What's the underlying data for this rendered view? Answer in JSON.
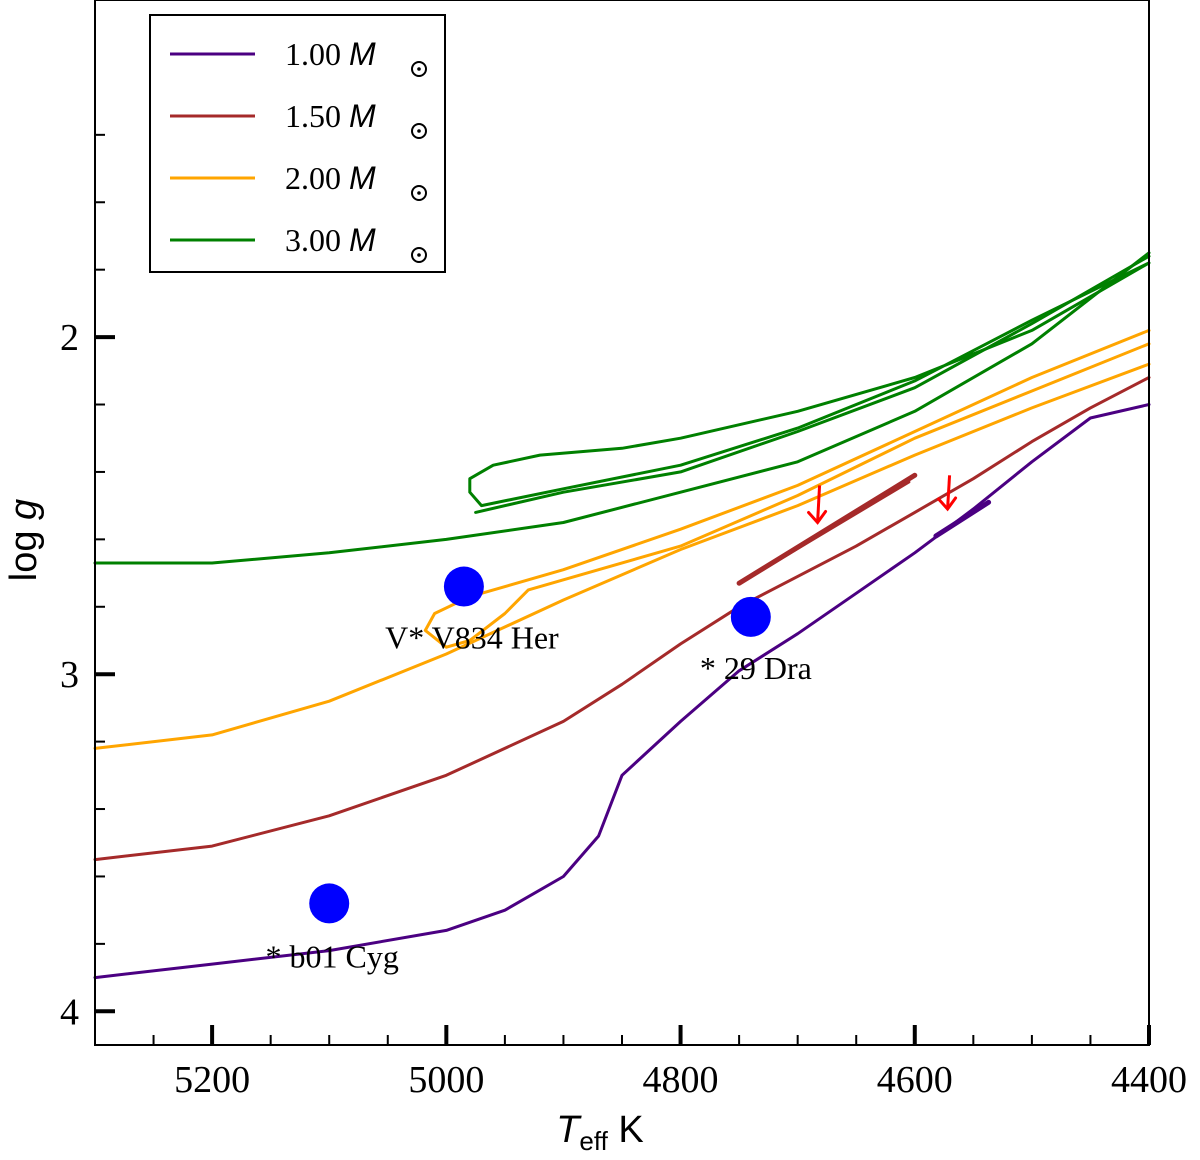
{
  "chart_data": {
    "type": "line",
    "xlabel": "T",
    "xlabel_sub": "eff",
    "xlabel_unit": "K",
    "ylabel": "log",
    "ylabel_var": "g",
    "xlim": [
      5300,
      4400
    ],
    "ylim": [
      1.0,
      4.1
    ],
    "x_ticks": [
      {
        "value": 5200,
        "label": "5200"
      },
      {
        "value": 5000,
        "label": "5000"
      },
      {
        "value": 4800,
        "label": "4800"
      },
      {
        "value": 4600,
        "label": "4600"
      },
      {
        "value": 4400,
        "label": "4400"
      }
    ],
    "x_minor_ticks": [
      5250,
      5150,
      5100,
      5050,
      4950,
      4900,
      4850,
      4750,
      4700,
      4650,
      4550,
      4500,
      4450
    ],
    "y_ticks": [
      {
        "value": 2,
        "label": "2"
      },
      {
        "value": 3,
        "label": "3"
      },
      {
        "value": 4,
        "label": "4"
      }
    ],
    "y_minor_ticks": [
      1.4,
      1.6,
      1.8,
      2.2,
      2.4,
      2.6,
      2.8,
      3.2,
      3.4,
      3.6,
      3.8
    ],
    "legend": {
      "position": "top-left",
      "entries": [
        {
          "label": "1.00",
          "unit": "M",
          "color": "#4b0082"
        },
        {
          "label": "1.50",
          "unit": "M",
          "color": "#a52a2a"
        },
        {
          "label": "2.00",
          "unit": "M",
          "color": "#ffa500"
        },
        {
          "label": "3.00",
          "unit": "M",
          "color": "#008000"
        }
      ]
    },
    "series": [
      {
        "name": "1.00 Msun",
        "color": "#4b0082",
        "points": [
          [
            5300,
            3.9
          ],
          [
            5200,
            3.86
          ],
          [
            5100,
            3.82
          ],
          [
            5000,
            3.76
          ],
          [
            4950,
            3.7
          ],
          [
            4900,
            3.6
          ],
          [
            4870,
            3.48
          ],
          [
            4850,
            3.3
          ],
          [
            4800,
            3.14
          ],
          [
            4750,
            2.99
          ],
          [
            4700,
            2.88
          ],
          [
            4650,
            2.76
          ],
          [
            4600,
            2.64
          ],
          [
            4550,
            2.51
          ],
          [
            4500,
            2.37
          ],
          [
            4450,
            2.24
          ],
          [
            4400,
            2.2
          ]
        ],
        "segments": [
          [
            [
              4582,
              2.59
            ],
            [
              4537,
              2.49
            ]
          ]
        ]
      },
      {
        "name": "1.50 Msun",
        "color": "#a52a2a",
        "points": [
          [
            5300,
            3.55
          ],
          [
            5200,
            3.51
          ],
          [
            5100,
            3.42
          ],
          [
            5000,
            3.3
          ],
          [
            4900,
            3.14
          ],
          [
            4850,
            3.03
          ],
          [
            4800,
            2.91
          ],
          [
            4750,
            2.8
          ],
          [
            4700,
            2.71
          ],
          [
            4650,
            2.62
          ],
          [
            4600,
            2.52
          ],
          [
            4550,
            2.42
          ],
          [
            4500,
            2.31
          ],
          [
            4450,
            2.21
          ],
          [
            4400,
            2.12
          ]
        ],
        "segments": [
          [
            [
              4750,
              2.73
            ],
            [
              4600,
              2.41
            ]
          ],
          [
            [
              4740,
              2.71
            ],
            [
              4605,
              2.43
            ]
          ]
        ]
      },
      {
        "name": "2.00 Msun",
        "color": "#ffa500",
        "points": [
          [
            5300,
            3.22
          ],
          [
            5200,
            3.18
          ],
          [
            5100,
            3.08
          ],
          [
            5000,
            2.94
          ],
          [
            4900,
            2.78
          ],
          [
            4800,
            2.63
          ],
          [
            4700,
            2.5
          ],
          [
            4600,
            2.35
          ],
          [
            4500,
            2.21
          ],
          [
            4400,
            2.08
          ]
        ],
        "segments": [
          [
            [
              4400,
              1.98
            ],
            [
              4500,
              2.12
            ],
            [
              4600,
              2.28
            ],
            [
              4700,
              2.44
            ],
            [
              4800,
              2.57
            ],
            [
              4900,
              2.69
            ],
            [
              4980,
              2.77
            ],
            [
              5010,
              2.82
            ],
            [
              5018,
              2.87
            ],
            [
              5000,
              2.92
            ],
            [
              4980,
              2.9
            ],
            [
              4950,
              2.82
            ],
            [
              4930,
              2.75
            ],
            [
              4900,
              2.72
            ],
            [
              4800,
              2.62
            ],
            [
              4700,
              2.47
            ],
            [
              4600,
              2.3
            ],
            [
              4500,
              2.16
            ],
            [
              4400,
              2.02
            ]
          ]
        ]
      },
      {
        "name": "3.00 Msun",
        "color": "#008000",
        "points": [
          [
            5300,
            2.67
          ],
          [
            5200,
            2.67
          ],
          [
            5100,
            2.64
          ],
          [
            5000,
            2.6
          ],
          [
            4900,
            2.55
          ],
          [
            4800,
            2.46
          ],
          [
            4700,
            2.37
          ],
          [
            4600,
            2.22
          ],
          [
            4500,
            2.02
          ],
          [
            4400,
            1.75
          ]
        ],
        "segments": [
          [
            [
              4400,
              1.78
            ],
            [
              4500,
              1.95
            ],
            [
              4600,
              2.13
            ],
            [
              4700,
              2.27
            ],
            [
              4800,
              2.38
            ],
            [
              4900,
              2.45
            ],
            [
              4970,
              2.5
            ],
            [
              4980,
              2.46
            ],
            [
              4980,
              2.42
            ],
            [
              4960,
              2.38
            ],
            [
              4920,
              2.35
            ],
            [
              4850,
              2.33
            ],
            [
              4800,
              2.3
            ],
            [
              4700,
              2.22
            ],
            [
              4600,
              2.12
            ],
            [
              4500,
              1.98
            ],
            [
              4400,
              1.78
            ]
          ],
          [
            [
              4400,
              1.76
            ],
            [
              4500,
              1.96
            ],
            [
              4600,
              2.15
            ],
            [
              4700,
              2.28
            ],
            [
              4800,
              2.4
            ],
            [
              4900,
              2.46
            ],
            [
              4975,
              2.52
            ]
          ]
        ]
      }
    ],
    "stars": [
      {
        "name": "V* V834 Her",
        "teff": 4985,
        "logg": 2.74
      },
      {
        "name": "* 29 Dra",
        "teff": 4740,
        "logg": 2.83
      },
      {
        "name": "* b01 Cyg",
        "teff": 5100,
        "logg": 3.68
      }
    ],
    "arrows": [
      {
        "teff": 4683,
        "logg_from": 2.44,
        "logg_to": 2.55,
        "color": "#ff0000"
      },
      {
        "teff": 4572,
        "logg_from": 2.41,
        "logg_to": 2.51,
        "color": "#ff0000"
      }
    ]
  }
}
